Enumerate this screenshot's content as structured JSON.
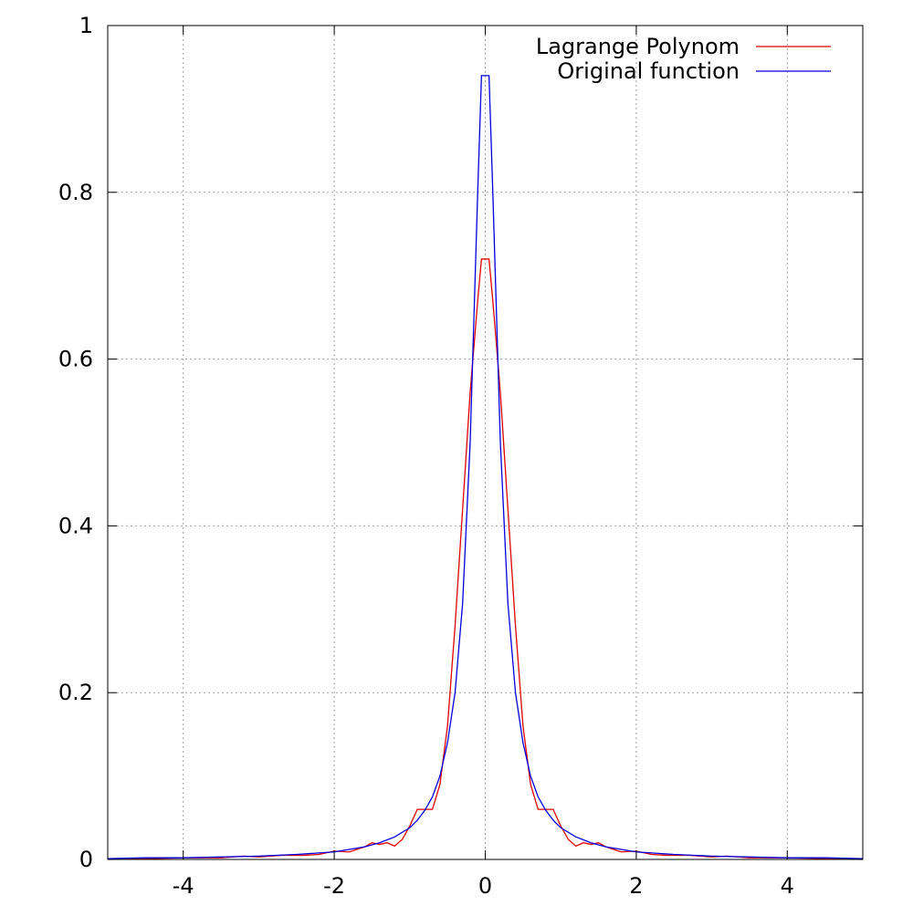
{
  "chart_data": {
    "type": "line",
    "xlim": [
      -5,
      5
    ],
    "ylim": [
      0,
      1
    ],
    "xticks": [
      -4,
      -2,
      0,
      2,
      4
    ],
    "yticks": [
      0,
      0.2,
      0.4,
      0.6,
      0.8,
      1
    ],
    "xtick_labels": [
      "-4",
      "-2",
      "0",
      "2",
      "4"
    ],
    "ytick_labels": [
      "0",
      "0.2",
      "0.4",
      "0.6",
      "0.8",
      "1"
    ],
    "grid": true,
    "legend_position": "top-right",
    "series": [
      {
        "name": "Lagrange Polynom",
        "color": "#e00000",
        "points": [
          [
            -5,
            0.0
          ],
          [
            -4.5,
            0.001
          ],
          [
            -4.0,
            0.002
          ],
          [
            -3.5,
            0.002
          ],
          [
            -3.2,
            0.004
          ],
          [
            -3.0,
            0.003
          ],
          [
            -2.7,
            0.005
          ],
          [
            -2.4,
            0.005
          ],
          [
            -2.2,
            0.006
          ],
          [
            -2.0,
            0.01
          ],
          [
            -1.8,
            0.009
          ],
          [
            -1.6,
            0.015
          ],
          [
            -1.5,
            0.02
          ],
          [
            -1.4,
            0.018
          ],
          [
            -1.3,
            0.02
          ],
          [
            -1.2,
            0.016
          ],
          [
            -1.1,
            0.024
          ],
          [
            -1.0,
            0.04
          ],
          [
            -0.9,
            0.06
          ],
          [
            -0.8,
            0.06
          ],
          [
            -0.7,
            0.06
          ],
          [
            -0.6,
            0.09
          ],
          [
            -0.5,
            0.16
          ],
          [
            -0.4,
            0.28
          ],
          [
            -0.3,
            0.42
          ],
          [
            -0.2,
            0.56
          ],
          [
            -0.1,
            0.67
          ],
          [
            -0.05,
            0.72
          ],
          [
            0.05,
            0.72
          ],
          [
            0.1,
            0.67
          ],
          [
            0.2,
            0.56
          ],
          [
            0.3,
            0.42
          ],
          [
            0.4,
            0.28
          ],
          [
            0.5,
            0.16
          ],
          [
            0.6,
            0.09
          ],
          [
            0.7,
            0.06
          ],
          [
            0.8,
            0.06
          ],
          [
            0.9,
            0.06
          ],
          [
            1.0,
            0.04
          ],
          [
            1.1,
            0.024
          ],
          [
            1.2,
            0.016
          ],
          [
            1.3,
            0.02
          ],
          [
            1.4,
            0.018
          ],
          [
            1.5,
            0.02
          ],
          [
            1.6,
            0.015
          ],
          [
            1.8,
            0.009
          ],
          [
            2.0,
            0.01
          ],
          [
            2.2,
            0.006
          ],
          [
            2.4,
            0.005
          ],
          [
            2.7,
            0.005
          ],
          [
            3.0,
            0.003
          ],
          [
            3.2,
            0.004
          ],
          [
            3.5,
            0.002
          ],
          [
            4.0,
            0.002
          ],
          [
            4.5,
            0.001
          ],
          [
            5,
            0.0
          ]
        ]
      },
      {
        "name": "Original function",
        "color": "#0000e0",
        "points": [
          [
            -5,
            0.001
          ],
          [
            -4.5,
            0.002
          ],
          [
            -4.0,
            0.002
          ],
          [
            -3.5,
            0.003
          ],
          [
            -3.0,
            0.004
          ],
          [
            -2.5,
            0.006
          ],
          [
            -2.0,
            0.009
          ],
          [
            -1.8,
            0.012
          ],
          [
            -1.6,
            0.015
          ],
          [
            -1.4,
            0.02
          ],
          [
            -1.2,
            0.027
          ],
          [
            -1.0,
            0.038
          ],
          [
            -0.9,
            0.047
          ],
          [
            -0.8,
            0.059
          ],
          [
            -0.7,
            0.075
          ],
          [
            -0.6,
            0.1
          ],
          [
            -0.5,
            0.14
          ],
          [
            -0.4,
            0.2
          ],
          [
            -0.3,
            0.307
          ],
          [
            -0.2,
            0.5
          ],
          [
            -0.1,
            0.8
          ],
          [
            -0.05,
            0.94
          ],
          [
            0.05,
            0.94
          ],
          [
            0.1,
            0.8
          ],
          [
            0.2,
            0.5
          ],
          [
            0.3,
            0.307
          ],
          [
            0.4,
            0.2
          ],
          [
            0.5,
            0.14
          ],
          [
            0.6,
            0.1
          ],
          [
            0.7,
            0.075
          ],
          [
            0.8,
            0.059
          ],
          [
            0.9,
            0.047
          ],
          [
            1.0,
            0.038
          ],
          [
            1.2,
            0.027
          ],
          [
            1.4,
            0.02
          ],
          [
            1.6,
            0.015
          ],
          [
            1.8,
            0.012
          ],
          [
            2.0,
            0.009
          ],
          [
            2.5,
            0.006
          ],
          [
            3.0,
            0.004
          ],
          [
            3.5,
            0.003
          ],
          [
            4.0,
            0.002
          ],
          [
            4.5,
            0.002
          ],
          [
            5,
            0.001
          ]
        ]
      }
    ]
  }
}
